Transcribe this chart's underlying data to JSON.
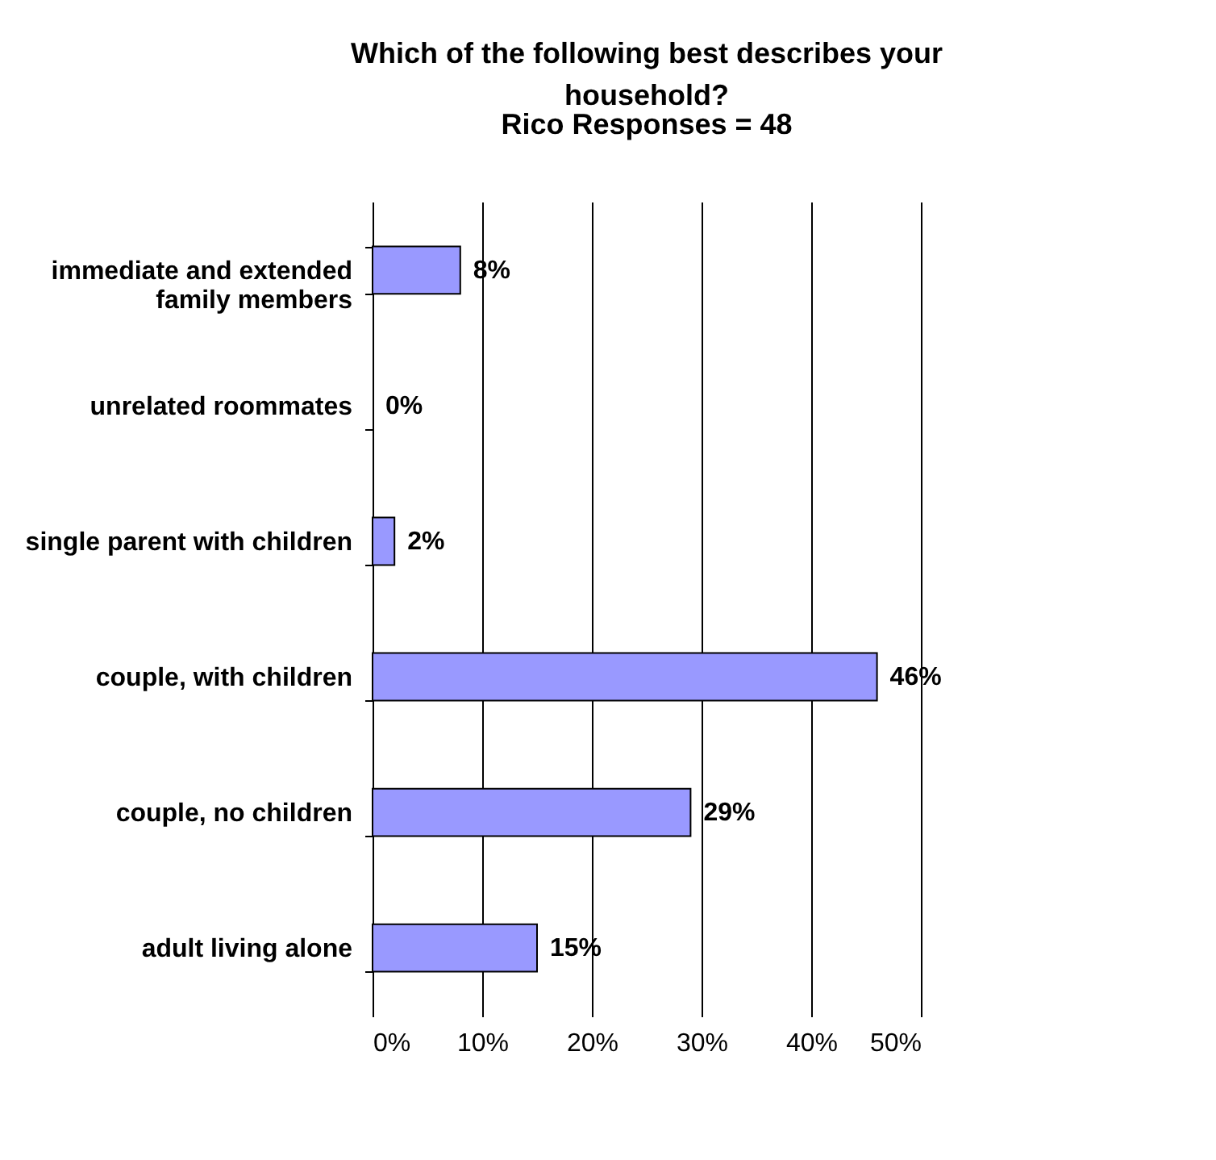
{
  "chart_data": {
    "type": "bar",
    "orientation": "horizontal",
    "title": "Which of the following best describes your household?",
    "subtitle": "Rico Responses = 48",
    "categories": [
      "immediate and extended family members",
      "unrelated roommates",
      "single parent with children",
      "couple, with children",
      "couple, no children",
      "adult living alone"
    ],
    "values": [
      8,
      0,
      2,
      46,
      29,
      15
    ],
    "value_labels": [
      "8%",
      "0%",
      "2%",
      "46%",
      "29%",
      "15%"
    ],
    "color": "#9999ff",
    "xlim": [
      0,
      50
    ],
    "xticks": [
      {
        "value": 0,
        "label": "0%"
      },
      {
        "value": 10,
        "label": "10%"
      },
      {
        "value": 20,
        "label": "20%"
      },
      {
        "value": 30,
        "label": "30%"
      },
      {
        "value": 40,
        "label": "40%"
      },
      {
        "value": 50,
        "label": "50%"
      }
    ],
    "grid": "x",
    "legend": false
  }
}
